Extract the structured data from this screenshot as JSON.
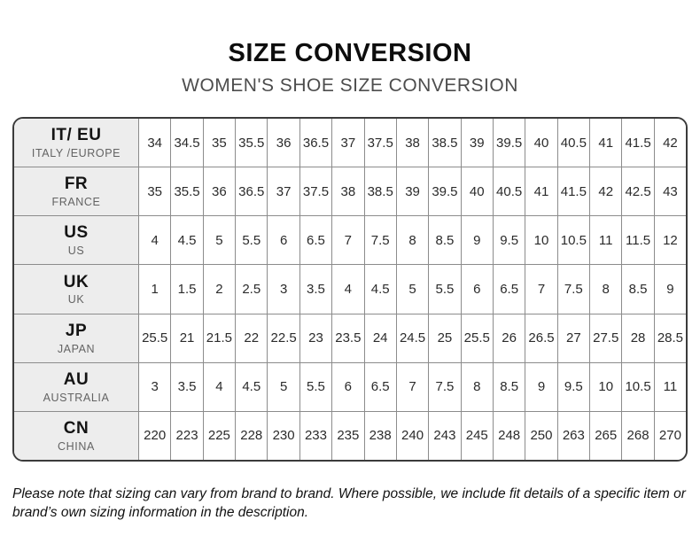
{
  "header": {
    "title": "SIZE CONVERSION",
    "subtitle": "WOMEN'S SHOE SIZE CONVERSION"
  },
  "table": {
    "rows": [
      {
        "code": "IT/ EU",
        "region": "ITALY /EUROPE",
        "values": [
          "34",
          "34.5",
          "35",
          "35.5",
          "36",
          "36.5",
          "37",
          "37.5",
          "38",
          "38.5",
          "39",
          "39.5",
          "40",
          "40.5",
          "41",
          "41.5",
          "42"
        ]
      },
      {
        "code": "FR",
        "region": "FRANCE",
        "values": [
          "35",
          "35.5",
          "36",
          "36.5",
          "37",
          "37.5",
          "38",
          "38.5",
          "39",
          "39.5",
          "40",
          "40.5",
          "41",
          "41.5",
          "42",
          "42.5",
          "43"
        ]
      },
      {
        "code": "US",
        "region": "US",
        "values": [
          "4",
          "4.5",
          "5",
          "5.5",
          "6",
          "6.5",
          "7",
          "7.5",
          "8",
          "8.5",
          "9",
          "9.5",
          "10",
          "10.5",
          "11",
          "11.5",
          "12"
        ]
      },
      {
        "code": "UK",
        "region": "UK",
        "values": [
          "1",
          "1.5",
          "2",
          "2.5",
          "3",
          "3.5",
          "4",
          "4.5",
          "5",
          "5.5",
          "6",
          "6.5",
          "7",
          "7.5",
          "8",
          "8.5",
          "9"
        ]
      },
      {
        "code": "JP",
        "region": "JAPAN",
        "values": [
          "25.5",
          "21",
          "21.5",
          "22",
          "22.5",
          "23",
          "23.5",
          "24",
          "24.5",
          "25",
          "25.5",
          "26",
          "26.5",
          "27",
          "27.5",
          "28",
          "28.5"
        ]
      },
      {
        "code": "AU",
        "region": "AUSTRALIA",
        "values": [
          "3",
          "3.5",
          "4",
          "4.5",
          "5",
          "5.5",
          "6",
          "6.5",
          "7",
          "7.5",
          "8",
          "8.5",
          "9",
          "9.5",
          "10",
          "10.5",
          "11"
        ]
      },
      {
        "code": "CN",
        "region": "CHINA",
        "values": [
          "220",
          "223",
          "225",
          "228",
          "230",
          "233",
          "235",
          "238",
          "240",
          "243",
          "245",
          "248",
          "250",
          "263",
          "265",
          "268",
          "270"
        ]
      }
    ]
  },
  "footer": {
    "note": "Please note that sizing can vary from brand to brand. Where possible, we include fit details of a specific item or brand’s own sizing information in the description."
  },
  "colors": {
    "outer_border": "#3b3b3b",
    "grid_line": "#8c8c8c",
    "header_cell_bg": "#ededed",
    "subtitle_text": "#4d4d4d"
  }
}
